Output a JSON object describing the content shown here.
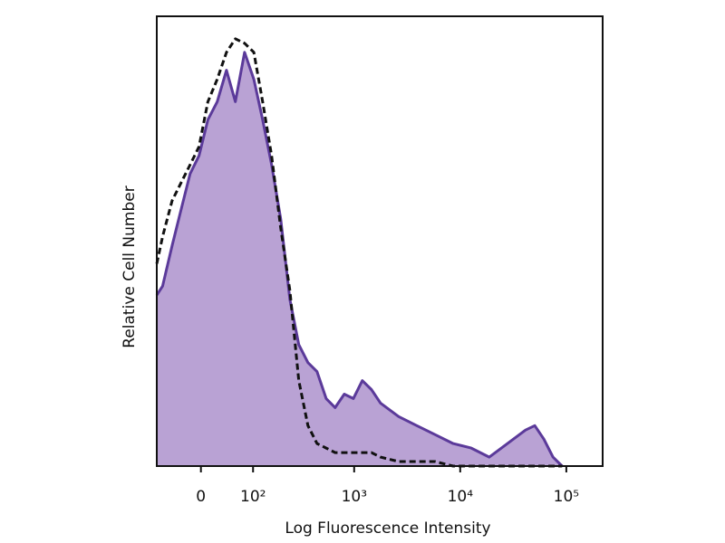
{
  "chart_data": {
    "type": "area",
    "xlabel": "Log Fluorescence Intensity",
    "ylabel": "Relative Cell Number",
    "xscale": "biexponential",
    "xlim": [
      -80,
      220000
    ],
    "xticks": [
      0,
      {
        "value": 100,
        "label": "10²"
      },
      {
        "value": 1000,
        "label": "10³"
      },
      {
        "value": 10000,
        "label": "10⁴"
      },
      {
        "value": 100000,
        "label": "10⁵"
      }
    ],
    "ylim": [
      0,
      100
    ],
    "x": [
      -80,
      -67,
      -48,
      -32,
      -17,
      -3,
      11,
      26,
      42,
      59,
      79,
      102,
      128,
      159,
      197,
      243,
      297,
      364,
      444,
      543,
      661,
      806,
      982,
      1195,
      1457,
      1773,
      2630,
      3900,
      5780,
      8580,
      12700,
      18800,
      27900,
      41300,
      50400,
      61400,
      74900,
      91300
    ],
    "series": [
      {
        "color": "#5b3a9a",
        "fill": "#b9a2d4",
        "dash": false,
        "values": [
          38,
          40,
          49,
          57,
          65,
          69,
          77,
          81,
          88,
          81,
          92,
          86,
          77,
          67,
          55,
          37,
          27,
          23,
          21,
          15,
          13,
          16,
          15,
          19,
          17,
          14,
          11,
          9,
          7,
          5,
          4,
          2,
          5,
          8,
          9,
          6,
          2,
          0
        ]
      },
      {
        "color": "#111111",
        "dash": true,
        "values": [
          45,
          51,
          59,
          63,
          67,
          71,
          81,
          86,
          92,
          95,
          94,
          92,
          81,
          69,
          53,
          39,
          19,
          9,
          5,
          4,
          3,
          3,
          3,
          3,
          3,
          2,
          1,
          1,
          1,
          0,
          0,
          0,
          0,
          0,
          0,
          0,
          0,
          0
        ]
      }
    ]
  }
}
